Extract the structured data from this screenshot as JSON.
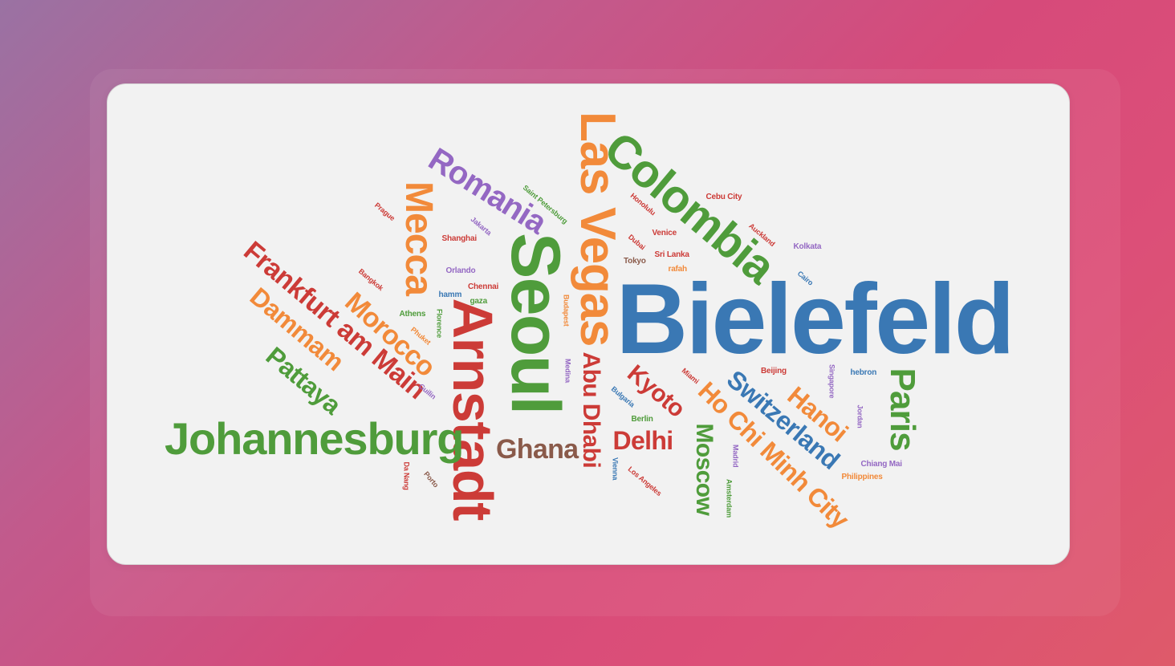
{
  "palette": {
    "blue": "#3a78b4",
    "orange": "#f28a3a",
    "green": "#4f9c3b",
    "red": "#cc3b37",
    "purple": "#9468c3",
    "brown": "#8a5a4a"
  },
  "words": [
    {
      "text": "Bielefeld",
      "color": "blue"
    },
    {
      "text": "Seoul",
      "color": "green"
    },
    {
      "text": "Arnstadt",
      "color": "red"
    },
    {
      "text": "Las Vegas",
      "color": "orange"
    },
    {
      "text": "Colombia",
      "color": "green"
    },
    {
      "text": "Johannesburg",
      "color": "green"
    },
    {
      "text": "Mecca",
      "color": "orange"
    },
    {
      "text": "Romania",
      "color": "purple"
    },
    {
      "text": "Frankfurt am Main",
      "color": "red"
    },
    {
      "text": "Dammam",
      "color": "orange"
    },
    {
      "text": "Morocco",
      "color": "orange"
    },
    {
      "text": "Pattaya",
      "color": "green"
    },
    {
      "text": "Ho Chi Minh City",
      "color": "orange"
    },
    {
      "text": "Switzerland",
      "color": "blue"
    },
    {
      "text": "Paris",
      "color": "green"
    },
    {
      "text": "Hanoi",
      "color": "orange"
    },
    {
      "text": "Moscow",
      "color": "green"
    },
    {
      "text": "Abu Dhabi",
      "color": "red"
    },
    {
      "text": "Ghana",
      "color": "brown"
    },
    {
      "text": "Delhi",
      "color": "red"
    },
    {
      "text": "Kyoto",
      "color": "red"
    },
    {
      "text": "Saint Petersburg",
      "color": "green"
    },
    {
      "text": "Prague",
      "color": "red"
    },
    {
      "text": "Jakarta",
      "color": "purple"
    },
    {
      "text": "Shanghai",
      "color": "red"
    },
    {
      "text": "Honolulu",
      "color": "red"
    },
    {
      "text": "Cebu City",
      "color": "red"
    },
    {
      "text": "Auckland",
      "color": "red"
    },
    {
      "text": "Kolkata",
      "color": "purple"
    },
    {
      "text": "Venice",
      "color": "red"
    },
    {
      "text": "Dubai",
      "color": "red"
    },
    {
      "text": "Sri Lanka",
      "color": "red"
    },
    {
      "text": "Tokyo",
      "color": "brown"
    },
    {
      "text": "rafah",
      "color": "orange"
    },
    {
      "text": "Cairo",
      "color": "blue"
    },
    {
      "text": "Bangkok",
      "color": "red"
    },
    {
      "text": "Orlando",
      "color": "purple"
    },
    {
      "text": "Chennai",
      "color": "red"
    },
    {
      "text": "hamm",
      "color": "blue"
    },
    {
      "text": "gaza",
      "color": "green"
    },
    {
      "text": "Athens",
      "color": "green"
    },
    {
      "text": "Florence",
      "color": "green"
    },
    {
      "text": "Phuket",
      "color": "orange"
    },
    {
      "text": "Budapest",
      "color": "orange"
    },
    {
      "text": "Medina",
      "color": "purple"
    },
    {
      "text": "Guilin",
      "color": "purple"
    },
    {
      "text": "Bulgaria",
      "color": "blue"
    },
    {
      "text": "Berlin",
      "color": "green"
    },
    {
      "text": "Miami",
      "color": "red"
    },
    {
      "text": "Beijing",
      "color": "red"
    },
    {
      "text": "Singapore",
      "color": "purple"
    },
    {
      "text": "hebron",
      "color": "blue"
    },
    {
      "text": "Jordan",
      "color": "purple"
    },
    {
      "text": "Chiang Mai",
      "color": "purple"
    },
    {
      "text": "Philippines",
      "color": "orange"
    },
    {
      "text": "Madrid",
      "color": "purple"
    },
    {
      "text": "Amsterdam",
      "color": "green"
    },
    {
      "text": "Vienna",
      "color": "blue"
    },
    {
      "text": "Los Angeles",
      "color": "red"
    },
    {
      "text": "Da Nang",
      "color": "red"
    },
    {
      "text": "Porto",
      "color": "brown"
    }
  ]
}
